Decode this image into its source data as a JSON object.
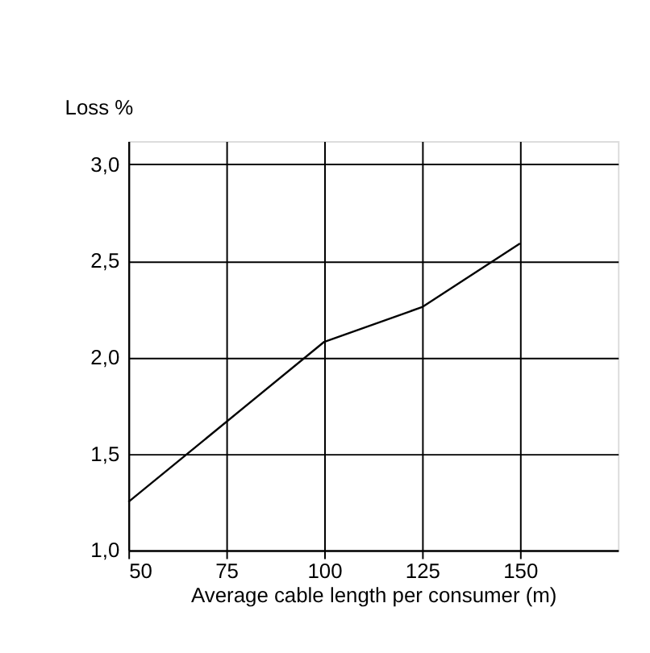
{
  "chart_data": {
    "type": "line",
    "xlabel": "Average cable length per consumer (m)",
    "ylabel": "Loss %",
    "x": [
      50,
      100,
      125,
      150
    ],
    "series": [
      {
        "color": "#000000",
        "values": [
          1.25,
          2.08,
          2.26,
          2.59
        ]
      }
    ],
    "xlim": [
      50,
      175
    ],
    "xticks": [
      50,
      75,
      100,
      125,
      150
    ],
    "ylim": [
      1.0,
      3.12
    ],
    "yticks": [
      {
        "value": 1.0,
        "label": "1,0"
      },
      {
        "value": 1.5,
        "label": "1,5"
      },
      {
        "value": 2.0,
        "label": "2,0"
      },
      {
        "value": 2.5,
        "label": "2,5"
      },
      {
        "value": 3.0,
        "label": "3,0"
      }
    ],
    "grid": true,
    "marker": "none",
    "line_style": "solid"
  }
}
